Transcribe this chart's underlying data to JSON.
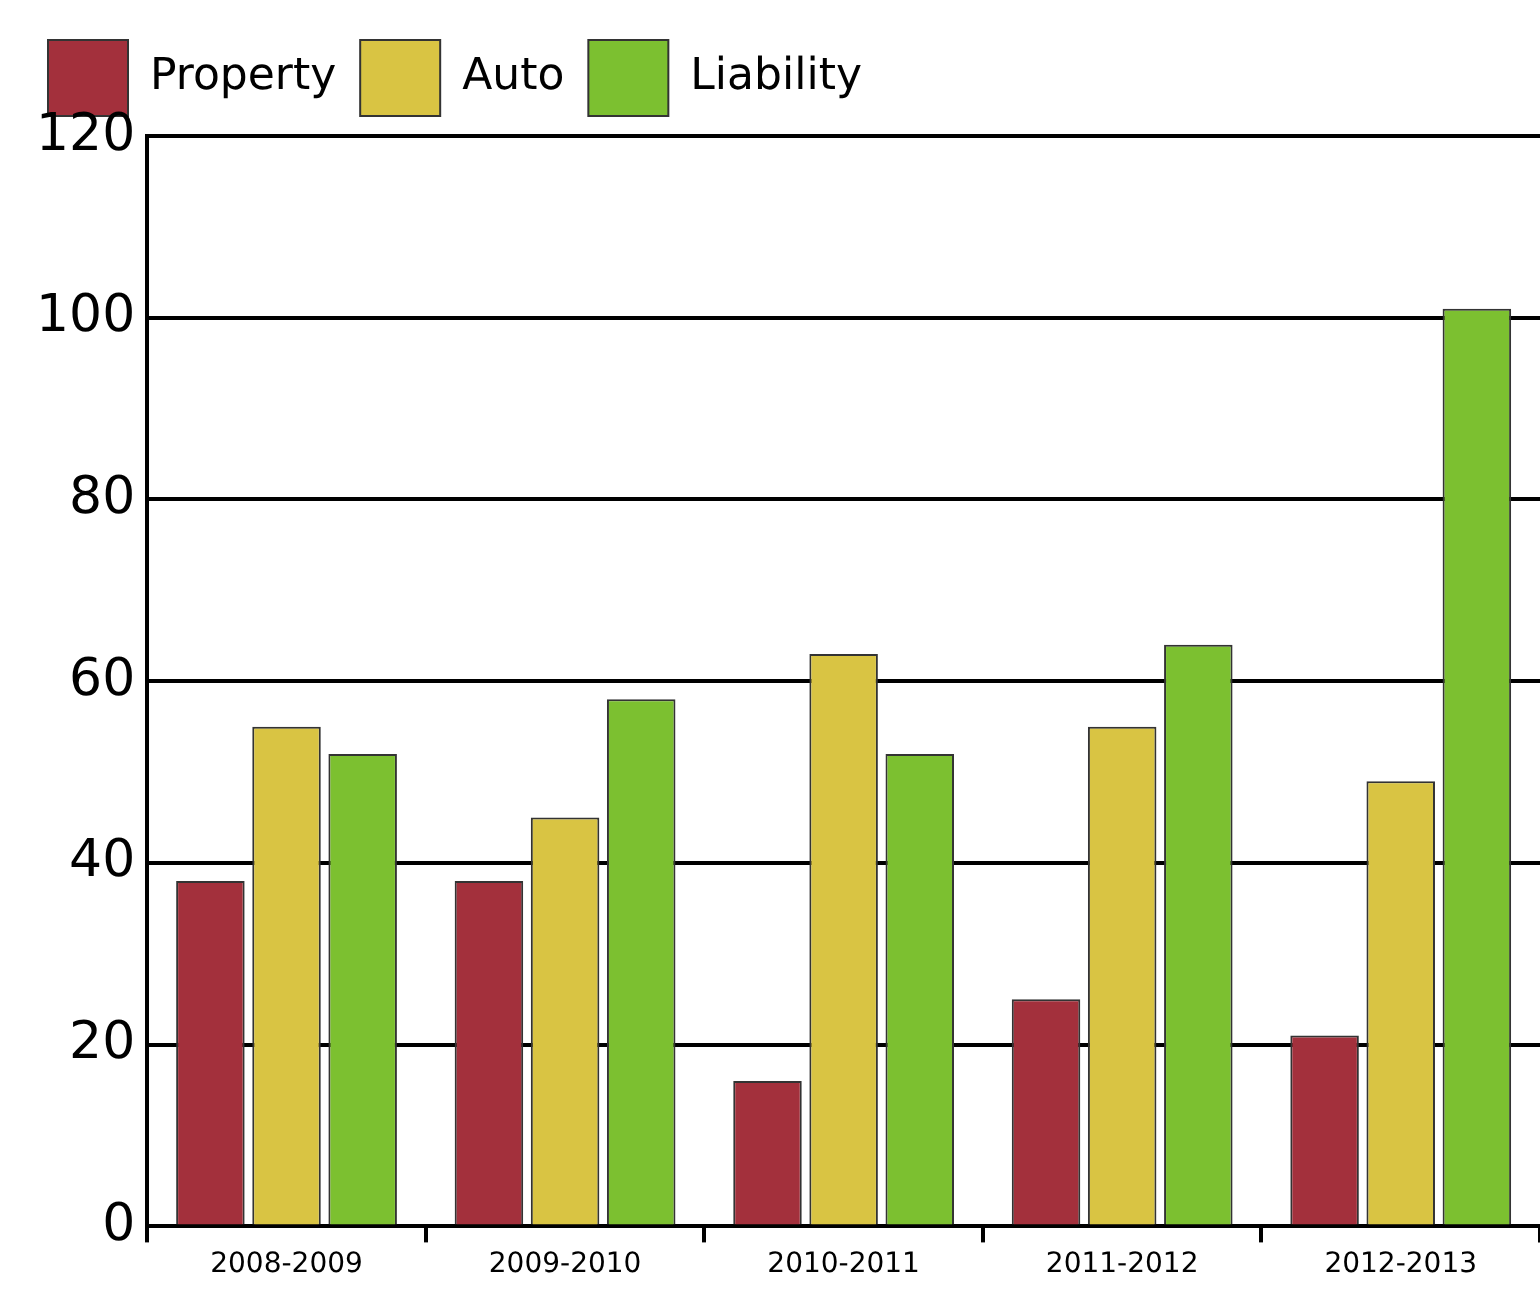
{
  "chart_data": {
    "type": "bar",
    "categories": [
      "2008-2009",
      "2009-2010",
      "2010-2011",
      "2011-2012",
      "2012-2013"
    ],
    "series": [
      {
        "name": "Property",
        "color": "#a3303c",
        "values": [
          38,
          38,
          16,
          25,
          21
        ]
      },
      {
        "name": "Auto",
        "color": "#d9c443",
        "values": [
          55,
          45,
          63,
          55,
          49
        ]
      },
      {
        "name": "Liability",
        "color": "#7cc030",
        "values": [
          52,
          58,
          52,
          64,
          101
        ]
      }
    ],
    "ylim": [
      0,
      120
    ],
    "yticks": [
      0,
      20,
      40,
      60,
      80,
      100,
      120
    ],
    "grid": "y",
    "legend": "top left"
  }
}
